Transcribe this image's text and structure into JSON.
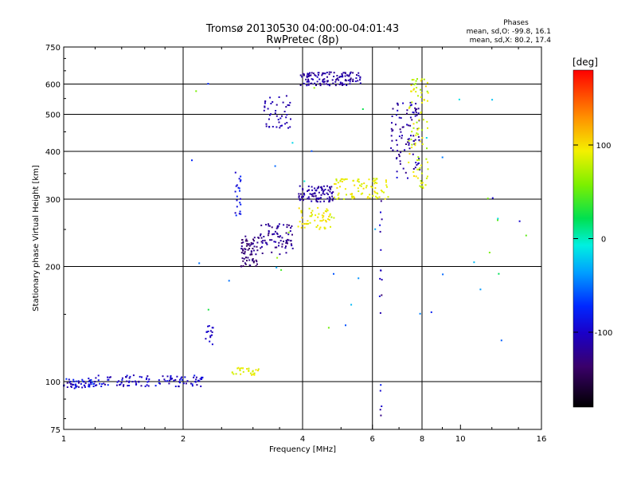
{
  "header": {
    "title_line1": "Tromsø 20130530 04:00:00-04:01:43",
    "title_line2": "RwPretec (8p)"
  },
  "stats": {
    "heading": "Phases",
    "line_o": "mean, sd,O: -99.8, 16.1",
    "line_x": "mean, sd,X:  80.2, 17.4"
  },
  "colorbar": {
    "label": "[deg]",
    "ticks": [
      "100",
      "0",
      "-100"
    ],
    "range": [
      -180,
      180
    ],
    "tick_values": [
      100,
      0,
      -100
    ]
  },
  "chart_data": {
    "type": "scatter",
    "xlabel": "Frequency [MHz]",
    "ylabel": "Stationary phase Virtual Height [km]",
    "x_scale": "log",
    "y_scale": "log",
    "xlim": [
      1,
      16
    ],
    "ylim": [
      75,
      750
    ],
    "xticks": [
      1,
      2,
      4,
      6,
      8,
      10,
      16
    ],
    "xtick_labels": [
      "1",
      "2",
      "4",
      "6",
      "8",
      "10",
      "16"
    ],
    "yticks": [
      75,
      100,
      200,
      300,
      400,
      500,
      600,
      750
    ],
    "ytick_labels": [
      "75",
      "100",
      "200",
      "300",
      "400",
      "500",
      "600",
      "750"
    ],
    "grid_x": [
      2,
      4,
      6,
      8
    ],
    "grid_y": [
      100,
      200,
      300,
      400,
      500,
      600
    ],
    "color_by": "phase_deg",
    "segments": [
      {
        "x0": 1.0,
        "x1": 1.2,
        "y": [
          96,
          102
        ],
        "phase": -95,
        "jitter": -60,
        "n": 55
      },
      {
        "x0": 1.2,
        "x1": 2.25,
        "y": [
          97,
          104
        ],
        "phase": -100,
        "jitter": 40,
        "n": 110
      },
      {
        "x0": 2.65,
        "x1": 3.1,
        "y": [
          104,
          109
        ],
        "phase": 90,
        "jitter": 30,
        "n": 28
      },
      {
        "x0": 2.28,
        "x1": 2.38,
        "y": [
          125,
          140
        ],
        "phase": -105,
        "jitter": 20,
        "n": 16
      },
      {
        "x0": 2.7,
        "x1": 2.8,
        "y": [
          270,
          360
        ],
        "phase": -90,
        "jitter": 40,
        "n": 22
      },
      {
        "x0": 2.8,
        "x1": 3.1,
        "y": [
          200,
          240
        ],
        "phase": -130,
        "jitter": 25,
        "n": 70
      },
      {
        "x0": 3.1,
        "x1": 3.8,
        "y": [
          215,
          260
        ],
        "phase": -120,
        "jitter": 25,
        "n": 80
      },
      {
        "x0": 3.2,
        "x1": 3.75,
        "y": [
          460,
          565
        ],
        "phase": -110,
        "jitter": 15,
        "n": 45
      },
      {
        "x0": 3.95,
        "x1": 5.6,
        "y": [
          595,
          645
        ],
        "phase": -115,
        "jitter": 25,
        "n": 130
      },
      {
        "x0": 3.9,
        "x1": 4.8,
        "y": [
          295,
          325
        ],
        "phase": -115,
        "jitter": 20,
        "n": 90
      },
      {
        "x0": 3.9,
        "x1": 4.8,
        "y": [
          250,
          285
        ],
        "phase": 95,
        "jitter": 25,
        "n": 55
      },
      {
        "x0": 4.8,
        "x1": 6.6,
        "y": [
          300,
          340
        ],
        "phase": 90,
        "jitter": 25,
        "n": 85
      },
      {
        "x0": 6.6,
        "x1": 7.9,
        "y": [
          340,
          540
        ],
        "phase": -115,
        "jitter": 30,
        "n": 90
      },
      {
        "x0": 7.4,
        "x1": 8.3,
        "y": [
          320,
          630
        ],
        "phase": 85,
        "jitter": 40,
        "n": 85
      },
      {
        "x0": 6.25,
        "x1": 6.35,
        "y": [
          76,
          300
        ],
        "phase": -110,
        "jitter": 60,
        "n": 18
      },
      {
        "x0": 6.0,
        "x1": 15.0,
        "y": [
          110,
          600
        ],
        "phase": -20,
        "jitter": 160,
        "n": 20
      },
      {
        "x0": 2.1,
        "x1": 6.0,
        "y": [
          130,
          660
        ],
        "phase": 0,
        "jitter": 160,
        "n": 22
      }
    ]
  }
}
